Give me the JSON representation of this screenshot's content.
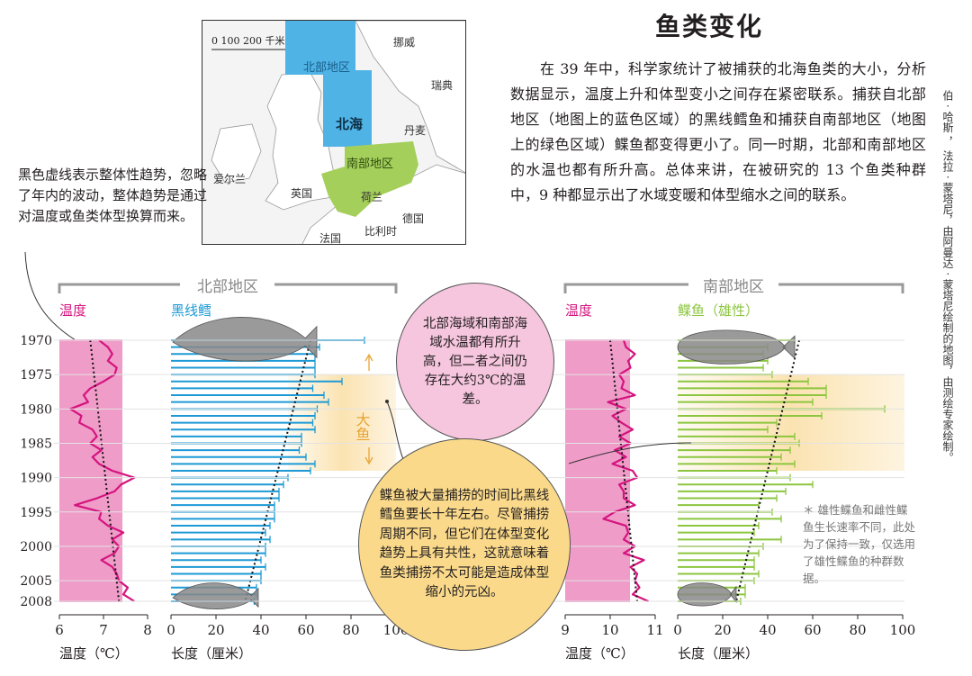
{
  "title": "鱼类变化",
  "intro": "在 39 年中，科学家统计了被捕获的北海鱼类的大小，分析数据显示，温度上升和体型变小之间存在紧密联系。捕获自北部地区（地图上的蓝色区域）的黑线鳕鱼和捕获自南部地区（地图上的绿色区域）鲽鱼都变得更小了。同一时期，北部和南部地区的水温也都有所升高。总体来讲，在被研究的 13 个鱼类种群中，9 种都显示出了水域变暖和体型缩水之间的联系。",
  "trend_note": "黑色虚线表示整体性趋势，忽略了年内的波动，整体趋势是通过对温度或鱼类体型换算而来。",
  "bubble_pink": "北部海域和南部海域水温都有所升高，但二者之间仍存在大约3℃的温差。",
  "bubble_yellow": "鲽鱼被大量捕捞的时间比黑线鳕鱼要长十年左右。尽管捕捞周期不同，但它们在体型变化趋势上具有共性，这就意味着鱼类捕捞不太可能是造成体型缩小的元凶。",
  "footnote": "＊ 雄性鲽鱼和雌性鲽鱼生长速率不同，此处为了保持一致，仅选用了雄性鲽鱼的种群数据。",
  "credit": "伯 · 哈斯 ， 法拉 · 蒙塔尼，由阿曼达 · 蒙塔尼绘制的地图，由测绘专家绘制。",
  "big_fish_label": "大鱼",
  "map": {
    "scale": "0 100 200 千米",
    "north_region": "北部地区",
    "south_region": "南部地区",
    "sea": "北海",
    "countries": [
      "挪威",
      "瑞典",
      "丹麦",
      "爱尔兰",
      "英国",
      "荷兰",
      "德国",
      "比利时",
      "法国"
    ]
  },
  "colors": {
    "pink": "#ef9cc8",
    "pink_line": "#d4147e",
    "blue": "#1d9ad6",
    "green": "#8cc63f",
    "yellow": "#fbe3b1",
    "gray_fish": "#888888",
    "map_blue": "#4fb3e6",
    "map_green": "#a4cf5b"
  },
  "chart_data": [
    {
      "type": "line",
      "panel": "北部地区",
      "title": "温度",
      "xlabel": "温度（℃）",
      "xlim": [
        6,
        8
      ],
      "xticks": [
        6,
        7,
        8
      ],
      "yticks": [
        1970,
        1975,
        1980,
        1985,
        1990,
        1995,
        2000,
        2005,
        2008
      ],
      "years": [
        1970,
        1971,
        1972,
        1973,
        1974,
        1975,
        1976,
        1977,
        1978,
        1979,
        1980,
        1981,
        1982,
        1983,
        1984,
        1985,
        1986,
        1987,
        1988,
        1989,
        1990,
        1991,
        1992,
        1993,
        1994,
        1995,
        1996,
        1997,
        1998,
        1999,
        2000,
        2001,
        2002,
        2003,
        2004,
        2005,
        2006,
        2007,
        2008
      ],
      "values": [
        6.9,
        7.1,
        7.2,
        7.1,
        7.3,
        7.25,
        7.0,
        6.7,
        6.55,
        6.65,
        6.25,
        6.5,
        6.45,
        6.75,
        6.85,
        6.7,
        6.95,
        6.75,
        6.9,
        7.2,
        7.7,
        7.4,
        7.25,
        6.85,
        6.35,
        6.95,
        6.9,
        7.1,
        7.45,
        7.2,
        7.35,
        7.25,
        6.95,
        7.2,
        7.3,
        7.35,
        7.55,
        7.45,
        7.7
      ],
      "trend": [
        [
          1970,
          6.7
        ],
        [
          2008,
          7.35
        ]
      ]
    },
    {
      "type": "bar",
      "panel": "北部地区",
      "title": "黑线鳕",
      "xlabel": "长度（厘米）",
      "xlim": [
        0,
        100
      ],
      "xticks": [
        0,
        20,
        40,
        60,
        80,
        100
      ],
      "years": [
        1970,
        1971,
        1972,
        1973,
        1974,
        1975,
        1976,
        1977,
        1978,
        1979,
        1980,
        1981,
        1982,
        1983,
        1984,
        1985,
        1986,
        1987,
        1988,
        1989,
        1990,
        1991,
        1992,
        1993,
        1994,
        1995,
        1996,
        1997,
        1998,
        1999,
        2000,
        2001,
        2002,
        2003,
        2004,
        2005,
        2006,
        2007,
        2008
      ],
      "mean": [
        62,
        61,
        60,
        59,
        58,
        57,
        56,
        55,
        55,
        54,
        53,
        52,
        52,
        51,
        50,
        49,
        48,
        48,
        47,
        46,
        46,
        45,
        44,
        43,
        43,
        42,
        41,
        40,
        40,
        39,
        38,
        38,
        37,
        36,
        35,
        35,
        34,
        33,
        32
      ],
      "max": [
        86,
        66,
        64,
        64,
        64,
        64,
        76,
        63,
        68,
        70,
        65,
        64,
        63,
        64,
        58,
        58,
        57,
        60,
        64,
        62,
        52,
        50,
        48,
        48,
        46,
        46,
        46,
        44,
        42,
        44,
        42,
        42,
        40,
        42,
        40,
        40,
        38,
        38,
        37
      ],
      "trend": [
        [
          1970,
          62
        ],
        [
          2008,
          33
        ]
      ]
    },
    {
      "type": "line",
      "panel": "南部地区",
      "title": "温度",
      "xlabel": "温度（℃）",
      "xlim": [
        9,
        11
      ],
      "xticks": [
        9,
        10,
        11
      ],
      "yticks": [
        1970,
        1975,
        1980,
        1985,
        1990,
        1995,
        2000,
        2005,
        2008
      ],
      "years": [
        1970,
        1971,
        1972,
        1973,
        1974,
        1975,
        1976,
        1977,
        1978,
        1979,
        1980,
        1981,
        1982,
        1983,
        1984,
        1985,
        1986,
        1987,
        1988,
        1989,
        1990,
        1991,
        1992,
        1993,
        1994,
        1995,
        1996,
        1997,
        1998,
        1999,
        2000,
        2001,
        2002,
        2003,
        2004,
        2005,
        2006,
        2007,
        2008
      ],
      "values": [
        10.3,
        10.35,
        10.55,
        10.4,
        10.45,
        10.2,
        10.3,
        10.25,
        10.55,
        9.95,
        10.35,
        10.05,
        10.25,
        10.5,
        10.2,
        10.45,
        10.1,
        10.35,
        10.05,
        10.5,
        10.6,
        10.2,
        10.3,
        10.3,
        10.55,
        10.1,
        9.85,
        10.35,
        10.4,
        10.3,
        10.55,
        10.3,
        10.75,
        10.45,
        10.6,
        10.55,
        10.65,
        10.5,
        10.85
      ],
      "trend": [
        [
          1970,
          10.0
        ],
        [
          2008,
          10.6
        ]
      ]
    },
    {
      "type": "bar",
      "panel": "南部地区",
      "title": "鲽鱼（雄性）",
      "xlabel": "长度（厘米）",
      "xlim": [
        0,
        100
      ],
      "xticks": [
        0,
        20,
        40,
        60,
        80,
        100
      ],
      "years": [
        1970,
        1971,
        1972,
        1973,
        1974,
        1975,
        1976,
        1977,
        1978,
        1979,
        1980,
        1981,
        1982,
        1983,
        1984,
        1985,
        1986,
        1987,
        1988,
        1989,
        1990,
        1991,
        1992,
        1993,
        1994,
        1995,
        1996,
        1997,
        1998,
        1999,
        2000,
        2001,
        2002,
        2003,
        2004,
        2005,
        2006,
        2007,
        2008
      ],
      "mean": [
        52,
        51,
        50,
        49,
        49,
        48,
        47,
        46,
        45,
        45,
        44,
        43,
        42,
        42,
        41,
        40,
        39,
        39,
        38,
        37,
        36,
        36,
        35,
        34,
        34,
        33,
        32,
        31,
        31,
        30,
        29,
        29,
        28,
        27,
        27,
        26,
        25,
        25,
        24
      ],
      "max": [
        52,
        40,
        38,
        40,
        38,
        42,
        58,
        66,
        66,
        60,
        92,
        64,
        44,
        40,
        52,
        54,
        50,
        46,
        52,
        44,
        50,
        60,
        48,
        44,
        36,
        42,
        46,
        36,
        34,
        46,
        38,
        36,
        34,
        34,
        36,
        34,
        30,
        30,
        28
      ],
      "trend": [
        [
          1970,
          54
        ],
        [
          2008,
          26
        ]
      ]
    }
  ],
  "panels": {
    "north": {
      "header": "北部地区",
      "temp_label": "温度",
      "fish_label": "黑线鳕",
      "temp_axis": "温度（℃）",
      "len_axis": "长度（厘米）"
    },
    "south": {
      "header": "南部地区",
      "temp_label": "温度",
      "fish_label": "鲽鱼（雄性）",
      "temp_axis": "温度（℃）",
      "len_axis": "长度（厘米）"
    }
  }
}
